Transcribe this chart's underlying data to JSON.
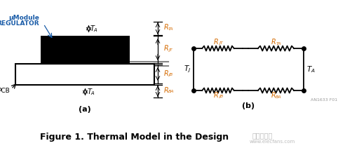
{
  "background_color": "#ffffff",
  "title": "Figure 1. Thermal Model in the Design",
  "title_fontsize": 9,
  "label_a": "(a)",
  "label_b": "(b)",
  "pcb_label": "PCB",
  "module_label1": "μModule",
  "module_label2": "REGULATOR",
  "label_color_blue": "#1a5ca8",
  "label_color_orange": "#d46a00",
  "watermark": "AN1633 F01"
}
